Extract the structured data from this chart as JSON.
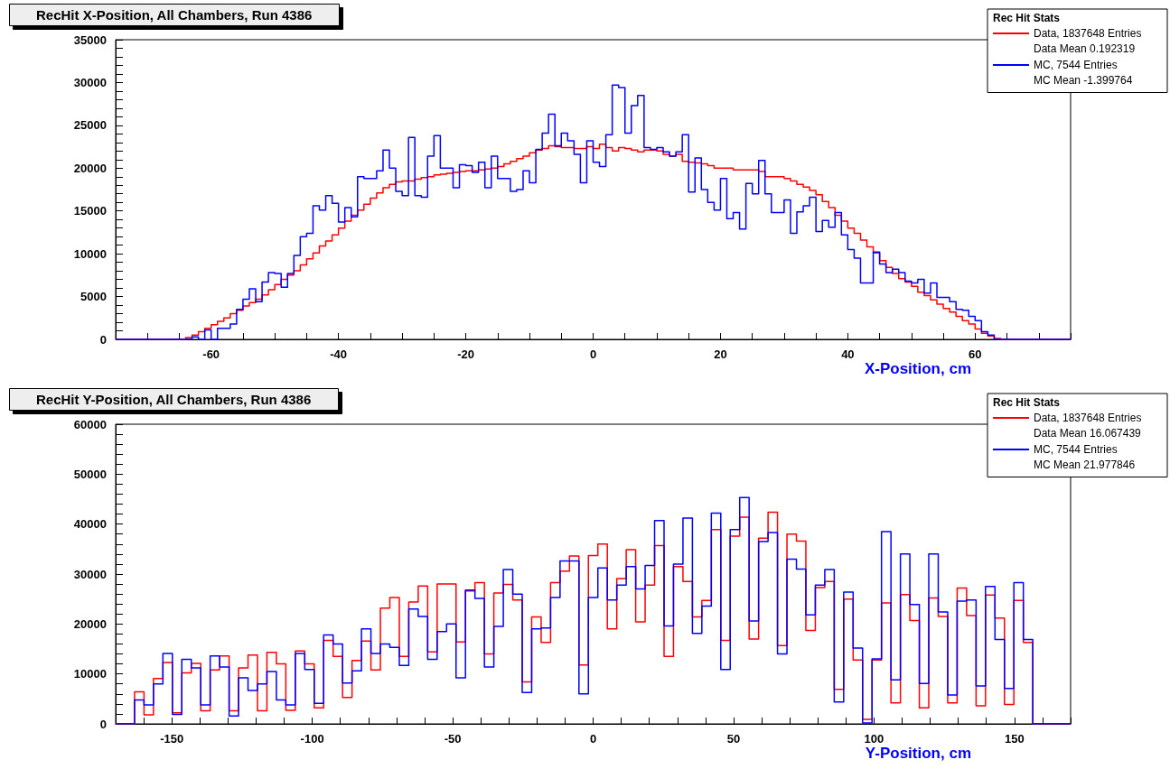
{
  "chart_data": [
    {
      "type": "histogram",
      "title": "RecHit X-Position, All Chambers, Run 4386",
      "xlabel": "X-Position, cm",
      "legend_title": "Rec Hit Stats",
      "legend": "top right",
      "bins": [
        -75,
        -74,
        -73,
        -72,
        -71,
        -70,
        -69,
        -68,
        -67,
        -66,
        -65,
        -64,
        -63,
        -62,
        -61,
        -60,
        -59,
        -58,
        -57,
        -56,
        -55,
        -54,
        -53,
        -52,
        -51,
        -50,
        -49,
        -48,
        -47,
        -46,
        -45,
        -44,
        -43,
        -42,
        -41,
        -40,
        -39,
        -38,
        -37,
        -36,
        -35,
        -34,
        -33,
        -32,
        -31,
        -30,
        -29,
        -28,
        -27,
        -26,
        -25,
        -24,
        -23,
        -22,
        -21,
        -20,
        -19,
        -18,
        -17,
        -16,
        -15,
        -14,
        -13,
        -12,
        -11,
        -10,
        -9,
        -8,
        -7,
        -6,
        -5,
        -4,
        -3,
        -2,
        -1,
        0,
        1,
        2,
        3,
        4,
        5,
        6,
        7,
        8,
        9,
        10,
        11,
        12,
        13,
        14,
        15,
        16,
        17,
        18,
        19,
        20,
        21,
        22,
        23,
        24,
        25,
        26,
        27,
        28,
        29,
        30,
        31,
        32,
        33,
        34,
        35,
        36,
        37,
        38,
        39,
        40,
        41,
        42,
        43,
        44,
        45,
        46,
        47,
        48,
        49,
        50,
        51,
        52,
        53,
        54,
        55,
        56,
        57,
        58,
        59,
        60,
        61,
        62,
        63,
        64,
        65,
        66,
        67,
        68,
        69,
        70,
        71,
        72,
        73,
        74,
        75
      ],
      "series": [
        {
          "name": "Data, 1837648 Entries",
          "color": "#ff0000",
          "values": [
            0,
            0,
            0,
            0,
            0,
            0,
            0,
            0,
            0,
            0,
            0,
            200,
            500,
            900,
            1300,
            1700,
            2100,
            2500,
            3000,
            3400,
            3900,
            4300,
            4700,
            5200,
            5800,
            6400,
            7000,
            7500,
            8000,
            8700,
            9400,
            10100,
            10900,
            11500,
            12200,
            13000,
            13800,
            14500,
            15100,
            15800,
            16500,
            17100,
            17700,
            18100,
            18400,
            18500,
            18500,
            18700,
            18900,
            19000,
            19200,
            19300,
            19400,
            19500,
            19600,
            19700,
            19700,
            19800,
            19900,
            20000,
            20200,
            20500,
            20800,
            21100,
            21400,
            21800,
            22100,
            22300,
            22600,
            22500,
            22400,
            22400,
            22300,
            22300,
            22500,
            22300,
            22800,
            22400,
            22000,
            22400,
            22300,
            22100,
            21900,
            22100,
            22100,
            22000,
            21600,
            21400,
            21600,
            20800,
            20700,
            20600,
            20500,
            20300,
            20000,
            20000,
            20000,
            19800,
            19800,
            19800,
            19800,
            19600,
            19000,
            19000,
            19000,
            18800,
            18500,
            18100,
            17800,
            17400,
            16900,
            16100,
            15400,
            14500,
            13800,
            13000,
            12400,
            11600,
            10800,
            10100,
            9200,
            8400,
            7700,
            7100,
            6700,
            6200,
            5500,
            5100,
            4600,
            4100,
            3600,
            3200,
            2700,
            2200,
            1800,
            1200,
            700,
            400,
            100,
            0,
            0,
            0,
            0,
            0,
            0,
            0,
            0,
            0,
            0,
            0
          ]
        },
        {
          "name": "MC, 7544 Entries",
          "color": "#0000ff",
          "values": [
            0,
            0,
            0,
            0,
            0,
            0,
            0,
            0,
            0,
            0,
            0,
            0,
            300,
            0,
            1100,
            0,
            1300,
            1300,
            1800,
            3500,
            4700,
            5900,
            4400,
            6700,
            7800,
            7700,
            6100,
            7700,
            9800,
            12000,
            12400,
            15600,
            15100,
            16800,
            15900,
            13700,
            15400,
            14300,
            19000,
            18800,
            18800,
            19700,
            22100,
            20000,
            17300,
            16800,
            23600,
            16800,
            16600,
            21400,
            23800,
            20000,
            20000,
            17700,
            20400,
            20300,
            19500,
            20700,
            17700,
            21400,
            18800,
            18800,
            17300,
            17500,
            19700,
            18300,
            22200,
            24100,
            26300,
            22600,
            24100,
            23200,
            21600,
            18300,
            23200,
            20700,
            20200,
            23900,
            29700,
            29400,
            24100,
            27300,
            28500,
            22400,
            22200,
            22400,
            21900,
            21400,
            21900,
            23900,
            17200,
            21200,
            17500,
            16000,
            15100,
            18800,
            14100,
            14800,
            12900,
            18200,
            17000,
            20900,
            17000,
            14800,
            14800,
            16300,
            12400,
            14900,
            15600,
            16600,
            12600,
            13900,
            13100,
            14800,
            12200,
            10500,
            9500,
            6600,
            6600,
            10200,
            8800,
            7800,
            8200,
            7800,
            6800,
            6600,
            7000,
            5400,
            6600,
            4900,
            4900,
            4400,
            3500,
            3400,
            2700,
            2200,
            900,
            500,
            0,
            0,
            0,
            0,
            0,
            0,
            0,
            0,
            0,
            0,
            0,
            0
          ]
        }
      ],
      "annotations": [
        "Data Mean 0.192319",
        "MC Mean -1.399764"
      ],
      "xlim": [
        -75,
        75
      ],
      "xticks": [
        -60,
        -40,
        -20,
        0,
        20,
        40,
        60
      ],
      "ylim": [
        0,
        35000
      ],
      "yticks": [
        0,
        5000,
        10000,
        15000,
        20000,
        25000,
        30000,
        35000
      ]
    },
    {
      "type": "histogram",
      "title": "RecHit Y-Position, All Chambers, Run 4386",
      "xlabel": "Y-Position, cm",
      "legend_title": "Rec Hit Stats",
      "legend": "top right",
      "bins": [
        -170,
        -166.63,
        -163.27,
        -159.9,
        -156.53,
        -153.17,
        -149.8,
        -146.44,
        -143.07,
        -139.7,
        -136.34,
        -132.97,
        -129.6,
        -126.24,
        -122.87,
        -119.5,
        -116.14,
        -112.77,
        -109.41,
        -106.04,
        -102.67,
        -99.31,
        -95.94,
        -92.57,
        -89.21,
        -85.84,
        -82.48,
        -79.11,
        -75.74,
        -72.38,
        -69.01,
        -65.64,
        -62.28,
        -58.91,
        -55.54,
        -52.18,
        -48.81,
        -45.45,
        -42.08,
        -38.71,
        -35.35,
        -31.98,
        -28.61,
        -25.25,
        -21.88,
        -18.51,
        -15.15,
        -11.78,
        -8.42,
        -5.05,
        -1.68,
        1.68,
        5.05,
        8.42,
        11.78,
        15.15,
        18.51,
        21.88,
        25.25,
        28.61,
        31.98,
        35.35,
        38.71,
        42.08,
        45.45,
        48.81,
        52.18,
        55.54,
        58.91,
        62.28,
        65.64,
        69.01,
        72.38,
        75.74,
        79.11,
        82.48,
        85.84,
        89.21,
        92.57,
        95.94,
        99.31,
        102.67,
        106.04,
        109.41,
        112.77,
        116.14,
        119.5,
        122.87,
        126.24,
        129.6,
        132.97,
        136.34,
        139.7,
        143.07,
        146.44,
        149.8,
        153.17,
        156.53,
        159.9,
        163.27,
        166.63,
        170
      ],
      "series": [
        {
          "name": "Data, 1837648 Entries",
          "color": "#ff0000",
          "values": [
            0,
            0,
            6400,
            1800,
            9100,
            12300,
            2200,
            10200,
            12100,
            2600,
            10800,
            13600,
            2600,
            11200,
            13800,
            2600,
            14300,
            12000,
            2700,
            14600,
            12000,
            3200,
            16700,
            13500,
            5300,
            12700,
            16600,
            10800,
            23200,
            25300,
            13500,
            24400,
            27600,
            14400,
            28000,
            28000,
            16400,
            26600,
            28300,
            14000,
            26200,
            27900,
            24800,
            8400,
            21400,
            16300,
            28300,
            30600,
            33600,
            11800,
            33700,
            36000,
            19000,
            29100,
            34900,
            20400,
            27800,
            35700,
            13500,
            31500,
            28500,
            21400,
            24700,
            38900,
            16700,
            37600,
            41400,
            17000,
            37200,
            42400,
            15700,
            38000,
            36600,
            18700,
            27300,
            28500,
            6900,
            25000,
            12800,
            900,
            12800,
            24200,
            4200,
            25900,
            20700,
            3200,
            25200,
            21500,
            4200,
            27200,
            21700,
            3600,
            25800,
            21200,
            3900,
            24700,
            16300,
            0,
            0,
            0,
            0
          ]
        },
        {
          "name": "MC, 7544 Entries",
          "color": "#0000ff",
          "values": [
            0,
            0,
            4800,
            3800,
            8000,
            14100,
            1900,
            12900,
            11200,
            3800,
            13600,
            11400,
            1600,
            9200,
            6700,
            8000,
            10500,
            4800,
            3800,
            14100,
            10900,
            4100,
            17800,
            16000,
            8200,
            10600,
            19000,
            14100,
            16000,
            15300,
            11700,
            23000,
            21500,
            12900,
            18500,
            20000,
            9200,
            26800,
            25100,
            11400,
            19500,
            30900,
            26000,
            6300,
            19000,
            19200,
            25300,
            32600,
            32600,
            6000,
            25300,
            31200,
            24800,
            27800,
            31500,
            27000,
            31700,
            40700,
            19600,
            32000,
            41200,
            18100,
            23600,
            42200,
            10900,
            38900,
            45300,
            20600,
            36500,
            38300,
            14000,
            33000,
            31000,
            21800,
            27800,
            30900,
            4400,
            26400,
            15200,
            200,
            13000,
            38500,
            8800,
            34000,
            23900,
            8100,
            34000,
            22400,
            5800,
            24600,
            24800,
            7600,
            27500,
            16900,
            7100,
            28300,
            16900,
            0,
            0,
            0,
            0
          ]
        }
      ],
      "annotations": [
        "Data Mean 16.067439",
        "MC Mean 21.977846"
      ],
      "xlim": [
        -170,
        170
      ],
      "xticks": [
        -150,
        -100,
        -50,
        0,
        50,
        100,
        150
      ],
      "ylim": [
        0,
        60000
      ],
      "yticks": [
        0,
        10000,
        20000,
        30000,
        40000,
        50000,
        60000
      ]
    }
  ]
}
